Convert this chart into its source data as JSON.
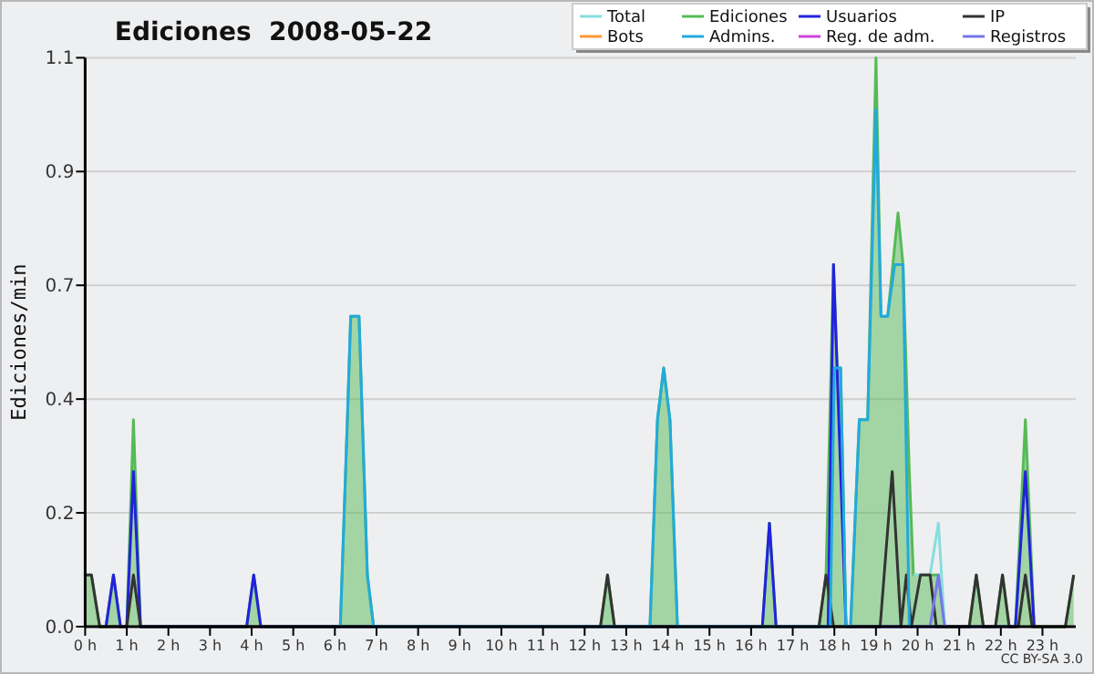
{
  "chart_data": {
    "type": "line",
    "title": "Ediciones  2008-05-22",
    "ylabel": "Ediciones/min",
    "xlim": [
      0,
      23.8
    ],
    "xticks": [
      {
        "value": 0,
        "label": "0 h"
      },
      {
        "value": 1,
        "label": "1 h"
      },
      {
        "value": 2,
        "label": "2 h"
      },
      {
        "value": 3,
        "label": "3 h"
      },
      {
        "value": 4,
        "label": "4 h"
      },
      {
        "value": 5,
        "label": "5 h"
      },
      {
        "value": 6,
        "label": "6 h"
      },
      {
        "value": 7,
        "label": "7 h"
      },
      {
        "value": 8,
        "label": "8 h"
      },
      {
        "value": 9,
        "label": "9 h"
      },
      {
        "value": 10,
        "label": "10 h"
      },
      {
        "value": 11,
        "label": "11 h"
      },
      {
        "value": 12,
        "label": "12 h"
      },
      {
        "value": 13,
        "label": "13 h"
      },
      {
        "value": 14,
        "label": "14 h"
      },
      {
        "value": 15,
        "label": "15 h"
      },
      {
        "value": 16,
        "label": "16 h"
      },
      {
        "value": 17,
        "label": "17 h"
      },
      {
        "value": 18,
        "label": "18 h"
      },
      {
        "value": 19,
        "label": "19 h"
      },
      {
        "value": 20,
        "label": "20 h"
      },
      {
        "value": 21,
        "label": "21 h"
      },
      {
        "value": 22,
        "label": "22 h"
      },
      {
        "value": 23,
        "label": "23 h"
      }
    ],
    "ylim": [
      0,
      1.1
    ],
    "yticks": [
      {
        "value": 0,
        "label": "0.0"
      },
      {
        "value": 0.22,
        "label": "0.2"
      },
      {
        "value": 0.44,
        "label": "0.4"
      },
      {
        "value": 0.66,
        "label": "0.7"
      },
      {
        "value": 0.88,
        "label": "0.9"
      },
      {
        "value": 1.1,
        "label": "1.1"
      }
    ],
    "grid": "y",
    "legend": "top right",
    "line_style": "solid",
    "marker": "none",
    "annotations": [
      "CC BY-SA 3.0"
    ],
    "series": [
      {
        "name": "Total",
        "color": "#88dddd",
        "x": [
          19.9,
          20.3,
          20.5,
          20.65
        ],
        "values": [
          0.1,
          0.1,
          0.2,
          0
        ]
      },
      {
        "name": "Ediciones",
        "type": "area",
        "color": "#55bb55",
        "x": [
          0,
          0.15,
          0.35,
          0.5,
          0.68,
          0.85,
          1.0,
          1.16,
          1.33,
          3.88,
          4.05,
          4.22,
          6.13,
          6.3,
          6.38,
          6.58,
          6.78,
          6.93,
          12.38,
          12.55,
          12.72,
          13.57,
          13.75,
          13.9,
          14.05,
          14.23,
          16.27,
          16.44,
          16.6,
          17.63,
          17.8,
          17.98,
          18.07,
          18.15,
          18.28,
          18.39,
          18.6,
          18.8,
          19.0,
          19.12,
          19.28,
          19.53,
          19.65,
          19.8,
          19.9,
          20.5,
          20.65,
          21.24,
          21.41,
          21.58,
          21.87,
          22.04,
          22.2,
          22.35,
          22.59,
          22.8,
          23.55,
          23.75
        ],
        "values": [
          0.1,
          0.1,
          0,
          0,
          0.1,
          0,
          0,
          0.4,
          0,
          0,
          0.1,
          0,
          0,
          0.4,
          0.6,
          0.6,
          0.1,
          0,
          0,
          0.1,
          0,
          0,
          0.4,
          0.5,
          0.4,
          0,
          0,
          0.2,
          0,
          0,
          0.1,
          0.7,
          0.5,
          0.5,
          0,
          0,
          0.4,
          0.4,
          1.1,
          0.6,
          0.6,
          0.8,
          0.7,
          0.3,
          0.1,
          0.1,
          0,
          0,
          0.1,
          0,
          0,
          0.1,
          0,
          0,
          0.4,
          0,
          0,
          0.1
        ]
      },
      {
        "name": "Usuarios",
        "color": "#2222dd",
        "x": [
          0.5,
          0.68,
          0.85,
          1.0,
          1.16,
          1.33,
          3.88,
          4.05,
          4.22,
          16.27,
          16.44,
          16.6,
          17.85,
          17.98,
          18.15,
          18.28,
          22.35,
          22.59,
          22.8
        ],
        "values": [
          0,
          0.1,
          0,
          0,
          0.3,
          0,
          0,
          0.1,
          0,
          0,
          0.2,
          0,
          0,
          0.7,
          0.3,
          0,
          0,
          0.3,
          0
        ]
      },
      {
        "name": "IP",
        "color": "#333333",
        "x": [
          0,
          0.15,
          0.35,
          1.0,
          1.16,
          1.33,
          12.38,
          12.55,
          12.72,
          17.63,
          17.8,
          17.98,
          19.1,
          19.39,
          19.6,
          19.73,
          19.85,
          20.07,
          20.3,
          20.45,
          21.24,
          21.41,
          21.58,
          21.87,
          22.04,
          22.2,
          22.42,
          22.59,
          22.75,
          23.55,
          23.75
        ],
        "values": [
          0.1,
          0.1,
          0,
          0,
          0.1,
          0,
          0,
          0.1,
          0,
          0,
          0.1,
          0,
          0,
          0.3,
          0,
          0.1,
          0,
          0.1,
          0.1,
          0,
          0,
          0.1,
          0,
          0,
          0.1,
          0,
          0,
          0.1,
          0,
          0,
          0.1
        ]
      },
      {
        "name": "Bots",
        "color": "#ff9933"
      },
      {
        "name": "Admins.",
        "color": "#22aadd",
        "x": [
          6.13,
          6.3,
          6.38,
          6.58,
          6.78,
          6.93,
          13.57,
          13.75,
          13.9,
          14.05,
          14.23,
          17.9,
          18.0,
          18.15,
          18.28,
          18.39,
          18.6,
          18.8,
          19.0,
          19.12,
          19.28,
          19.45,
          19.65,
          19.8
        ],
        "values": [
          0,
          0.4,
          0.6,
          0.6,
          0.1,
          0,
          0,
          0.4,
          0.5,
          0.4,
          0,
          0,
          0.5,
          0.5,
          0,
          0,
          0.4,
          0.4,
          1.0,
          0.6,
          0.6,
          0.7,
          0.7,
          0
        ]
      },
      {
        "name": "Reg. de adm.",
        "color": "#cc44dd"
      },
      {
        "name": "Registros",
        "color": "#7777ee",
        "x": [
          20.3,
          20.5,
          20.65
        ],
        "values": [
          0,
          0.1,
          0
        ]
      }
    ]
  }
}
